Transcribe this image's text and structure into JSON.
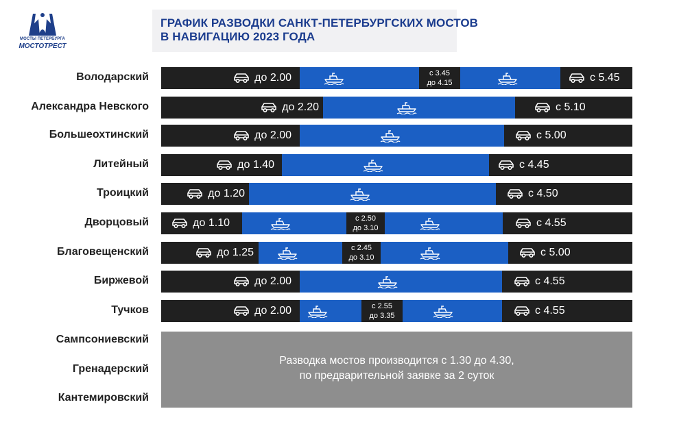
{
  "header": {
    "logo_top": "МОСТЫ ПЕТЕРБУРГА",
    "logo_bottom": "МОСТОТРЕСТ",
    "title_line1": "ГРАФИК РАЗВОДКИ САНКТ-ПЕТЕРБУРГСКИХ МОСТОВ",
    "title_line2": "В НАВИГАЦИЮ 2023 ГОДА"
  },
  "colors": {
    "road": "#202020",
    "water": "#1b5fc4",
    "note": "#8e8e8e",
    "title": "#1b3c8e"
  },
  "icons": {
    "road": "car-icon",
    "water": "ship-icon"
  },
  "bridges": [
    {
      "name": "Володарский",
      "close": "до 2.00",
      "open": "с 5.45",
      "mid": [
        "с 3.45",
        "до 4.15"
      ]
    },
    {
      "name": "Александра Невского",
      "close": "до 2.20",
      "open": "с 5.10"
    },
    {
      "name": "Большеохтинский",
      "close": "до 2.00",
      "open": "с 5.00"
    },
    {
      "name": "Литейный",
      "close": "до 1.40",
      "open": "с 4.45"
    },
    {
      "name": "Троицкий",
      "close": "до 1.20",
      "open": "с 4.50"
    },
    {
      "name": "Дворцовый",
      "close": "до 1.10",
      "open": "с 4.55",
      "mid": [
        "с 2.50",
        "до 3.10"
      ]
    },
    {
      "name": "Благовещенский",
      "close": "до 1.25",
      "open": "с 5.00",
      "mid": [
        "с 2.45",
        "до 3.10"
      ]
    },
    {
      "name": "Биржевой",
      "close": "до 2.00",
      "open": "с 4.55"
    },
    {
      "name": "Тучков",
      "close": "до 2.00",
      "open": "с 4.55",
      "mid": [
        "с 2.55",
        "до 3.35"
      ]
    }
  ],
  "on_request": {
    "bridges": [
      "Сампсониевский",
      "Гренадерский",
      "Кантемировский"
    ],
    "note_line1": "Разводка мостов производится с 1.30 до 4.30,",
    "note_line2": "по предварительной заявке за 2 суток"
  }
}
